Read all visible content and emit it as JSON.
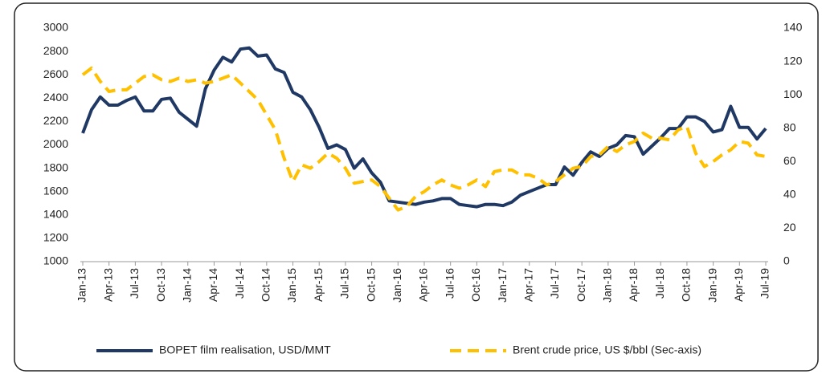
{
  "chart_data": {
    "type": "line",
    "categories": [
      "Jan-13",
      null,
      null,
      "Apr-13",
      null,
      null,
      "Jul-13",
      null,
      null,
      "Oct-13",
      null,
      null,
      "Jan-14",
      null,
      null,
      "Apr-14",
      null,
      null,
      "Jul-14",
      null,
      null,
      "Oct-14",
      null,
      null,
      "Jan-15",
      null,
      null,
      "Apr-15",
      null,
      null,
      "Jul-15",
      null,
      null,
      "Oct-15",
      null,
      null,
      "Jan-16",
      null,
      null,
      "Apr-16",
      null,
      null,
      "Jul-16",
      null,
      null,
      "Oct-16",
      null,
      null,
      "Jan-17",
      null,
      null,
      "Apr-17",
      null,
      null,
      "Jul-17",
      null,
      null,
      "Oct-17",
      null,
      null,
      "Jan-18",
      null,
      null,
      "Apr-18",
      null,
      null,
      "Jul-18",
      null,
      null,
      "Oct-18",
      null,
      null,
      "Jan-19",
      null,
      null,
      "Apr-19",
      null,
      null,
      "Jul-19"
    ],
    "series": [
      {
        "name": "BOPET film realisation, USD/MMT",
        "color": "#1f3864",
        "dash": false,
        "axis": "y",
        "values": [
          2100,
          2300,
          2410,
          2340,
          2340,
          2380,
          2410,
          2290,
          2290,
          2390,
          2400,
          2280,
          2220,
          2160,
          2480,
          2640,
          2750,
          2710,
          2820,
          2830,
          2760,
          2770,
          2650,
          2620,
          2450,
          2410,
          2300,
          2150,
          1970,
          2000,
          1960,
          1800,
          1880,
          1760,
          1680,
          1520,
          1510,
          1500,
          1490,
          1510,
          1520,
          1540,
          1540,
          1490,
          1480,
          1470,
          1490,
          1490,
          1480,
          1510,
          1570,
          1600,
          1630,
          1660,
          1660,
          1810,
          1740,
          1850,
          1940,
          1900,
          1970,
          2000,
          2080,
          2070,
          1920,
          1990,
          2060,
          2140,
          2140,
          2240,
          2240,
          2200,
          2110,
          2130,
          2330,
          2150,
          2150,
          2050,
          2140
        ]
      },
      {
        "name": "Brent crude price, US $/bbl (Sec-axis)",
        "color": "#ffc000",
        "dash": true,
        "axis": "y2",
        "values": [
          112,
          116,
          108,
          102,
          103,
          103,
          107,
          111,
          112,
          109,
          108,
          110,
          108,
          109,
          107,
          108,
          110,
          112,
          107,
          102,
          97,
          88,
          79,
          62,
          48,
          58,
          56,
          60,
          65,
          62,
          56,
          47,
          48,
          49,
          45,
          38,
          31,
          33,
          39,
          42,
          46,
          49,
          46,
          44,
          46,
          49,
          45,
          54,
          55,
          55,
          52,
          52,
          50,
          46,
          48,
          52,
          56,
          57,
          63,
          64,
          69,
          66,
          70,
          72,
          77,
          74,
          74,
          73,
          79,
          81,
          65,
          57,
          60,
          64,
          67,
          72,
          71,
          64,
          63
        ]
      }
    ],
    "ylim": [
      1000,
      3000
    ],
    "yticks": [
      1000,
      1200,
      1400,
      1600,
      1800,
      2000,
      2200,
      2400,
      2600,
      2800,
      3000
    ],
    "y2lim": [
      0,
      140
    ],
    "y2ticks": [
      0,
      20,
      40,
      60,
      80,
      100,
      120,
      140
    ],
    "legend": "bottom"
  }
}
